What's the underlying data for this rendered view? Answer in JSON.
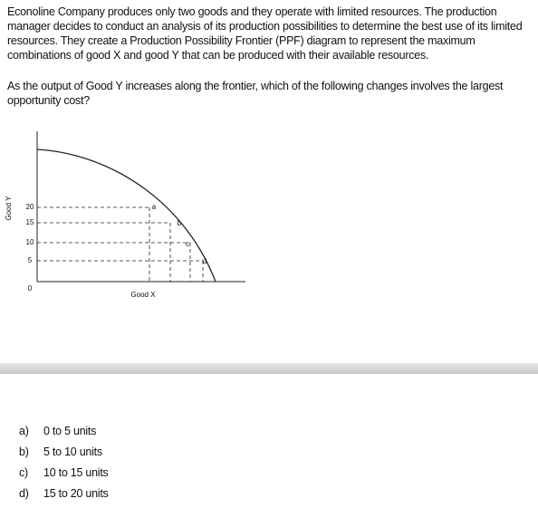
{
  "question": {
    "paragraphs": [
      "Econoline Company produces only two goods and they operate with limited resources. The production manager decides to conduct an analysis of its production possibilities to determine the best use of its limited resources. They create a Production Possibility Frontier (PPF) diagram to represent the maximum combinations of good X and good Y that can be produced with their available resources.",
      "As the output of Good Y increases along the frontier, which of the following changes involves the largest opportunity cost?"
    ]
  },
  "figure": {
    "y_label": "Good Y",
    "x_label": "Good X",
    "yticks": [
      20,
      15,
      10,
      5,
      0
    ],
    "points": [
      "a",
      "b",
      "c",
      "d"
    ]
  },
  "options": [
    {
      "letter": "a)",
      "text": "0 to 5 units"
    },
    {
      "letter": "b)",
      "text": "5 to 10 units"
    },
    {
      "letter": "c)",
      "text": "10 to 15 units"
    },
    {
      "letter": "d)",
      "text": "15 to 20 units"
    }
  ]
}
